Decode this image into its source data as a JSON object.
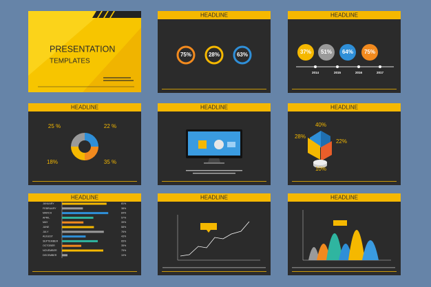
{
  "cover": {
    "title": "PRESENTATION",
    "subtitle": "TEMPLATES"
  },
  "slides": [
    {
      "headline": "HEADLINE",
      "labels": [
        "75%",
        "28%",
        "63%"
      ]
    },
    {
      "headline": "HEADLINE",
      "labels": [
        "37%",
        "51%",
        "64%",
        "75%"
      ],
      "years": [
        "2014",
        "2015",
        "2016",
        "2017"
      ]
    },
    {
      "headline": "HEADLINE",
      "labels": [
        "25 %",
        "22 %",
        "18%",
        "35 %"
      ]
    },
    {
      "headline": "HEADLINE"
    },
    {
      "headline": "HEADLINE",
      "labels": [
        "40%",
        "28%",
        "22%",
        "10%"
      ]
    },
    {
      "headline": "HEADLINE",
      "months": [
        "JANUARY",
        "FEBRUARY",
        "MARCH",
        "APRIL",
        "MAY",
        "JUNE",
        "JULY",
        "AUGUST",
        "SEPTEMBER",
        "OCTOBER",
        "NOVEMBER",
        "DECEMBER"
      ],
      "labels": [
        "81%",
        "38%",
        "84%",
        "57%",
        "39%",
        "58%",
        "76%",
        "43%",
        "65%",
        "35%",
        "75%",
        "10%"
      ]
    },
    {
      "headline": "HEADLINE"
    },
    {
      "headline": "HEADLINE"
    }
  ]
}
